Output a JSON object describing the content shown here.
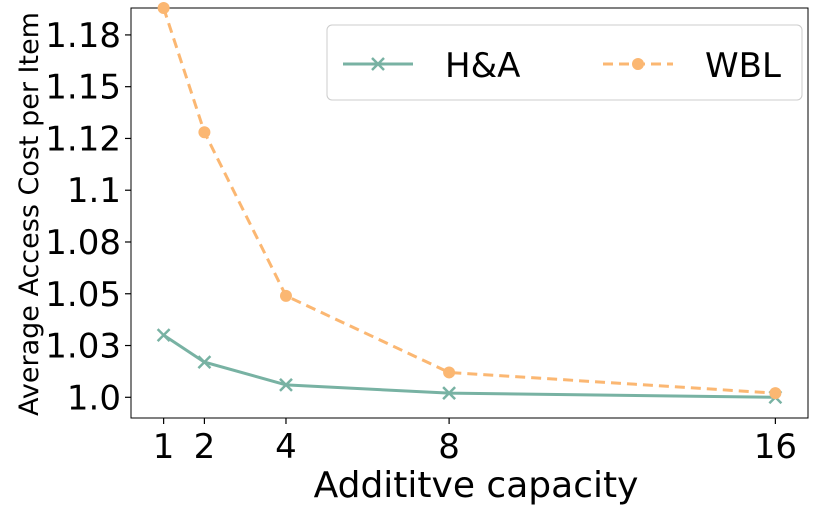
{
  "chart_data": {
    "type": "line",
    "xlabel": "Addititve capacity",
    "ylabel": "Average Access Cost per Item",
    "x": [
      1,
      2,
      4,
      8,
      16
    ],
    "xticks": [
      1,
      2,
      4,
      8,
      16
    ],
    "xtick_labels": [
      "1",
      "2",
      "4",
      "8",
      "16"
    ],
    "xlim": [
      0.2,
      16.8
    ],
    "yticks": [
      1.0,
      1.025,
      1.05,
      1.075,
      1.1,
      1.125,
      1.15,
      1.175
    ],
    "ytick_labels": [
      "1.0",
      "1.03",
      "1.05",
      "1.08",
      "1.1",
      "1.12",
      "1.15",
      "1.18"
    ],
    "ylim": [
      0.99,
      1.188
    ],
    "grid": false,
    "legend_position": "top-right",
    "series": [
      {
        "name": "H&A",
        "values": [
          1.03,
          1.017,
          1.006,
          1.002,
          1.0
        ],
        "color": "#78b2a3",
        "marker": "x",
        "dash": "solid"
      },
      {
        "name": "WBL",
        "values": [
          1.188,
          1.128,
          1.049,
          1.012,
          1.002
        ],
        "color": "#fbb772",
        "marker": "circle",
        "dash": "dashed"
      }
    ]
  }
}
